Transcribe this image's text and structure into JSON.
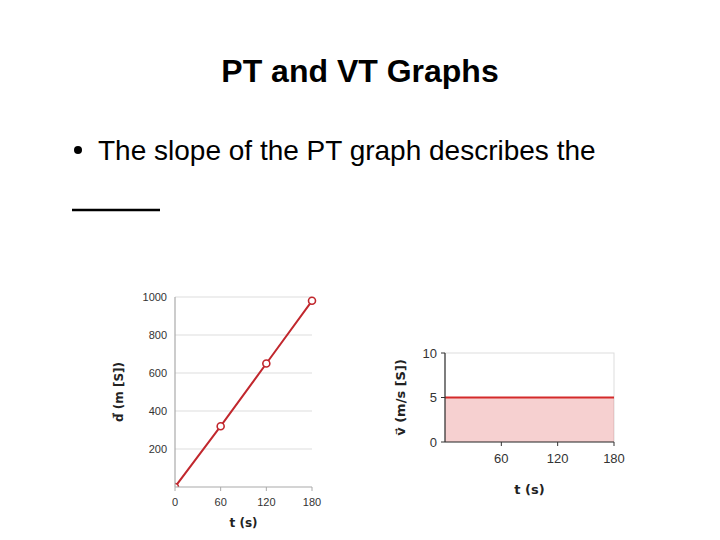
{
  "slide": {
    "title": "PT and VT Graphs",
    "bullet": "The slope of the PT graph describes the"
  },
  "chart_data": [
    {
      "type": "line",
      "x_label": "t (s)",
      "y_label": "d⃗ (m [S])",
      "x": [
        0,
        60,
        120,
        180
      ],
      "values": [
        0,
        320,
        650,
        980
      ],
      "color": "#c1272d",
      "marker": "circle",
      "grid": true,
      "xlim": [
        0,
        180
      ],
      "xticks": [
        0,
        60,
        120,
        180
      ],
      "ylim": [
        0,
        1000
      ],
      "yticks": [
        200,
        400,
        600,
        800,
        1000
      ]
    },
    {
      "type": "area",
      "x_label": "t (s)",
      "y_label": "v⃗ (m/s [S])",
      "x": [
        0,
        180
      ],
      "values": [
        5,
        5
      ],
      "color": "#d42a2a",
      "grid": false,
      "xlim": [
        0,
        180
      ],
      "xticks": [
        60,
        120,
        180
      ],
      "ylim": [
        0,
        10
      ],
      "yticks": [
        0,
        5,
        10
      ]
    }
  ]
}
